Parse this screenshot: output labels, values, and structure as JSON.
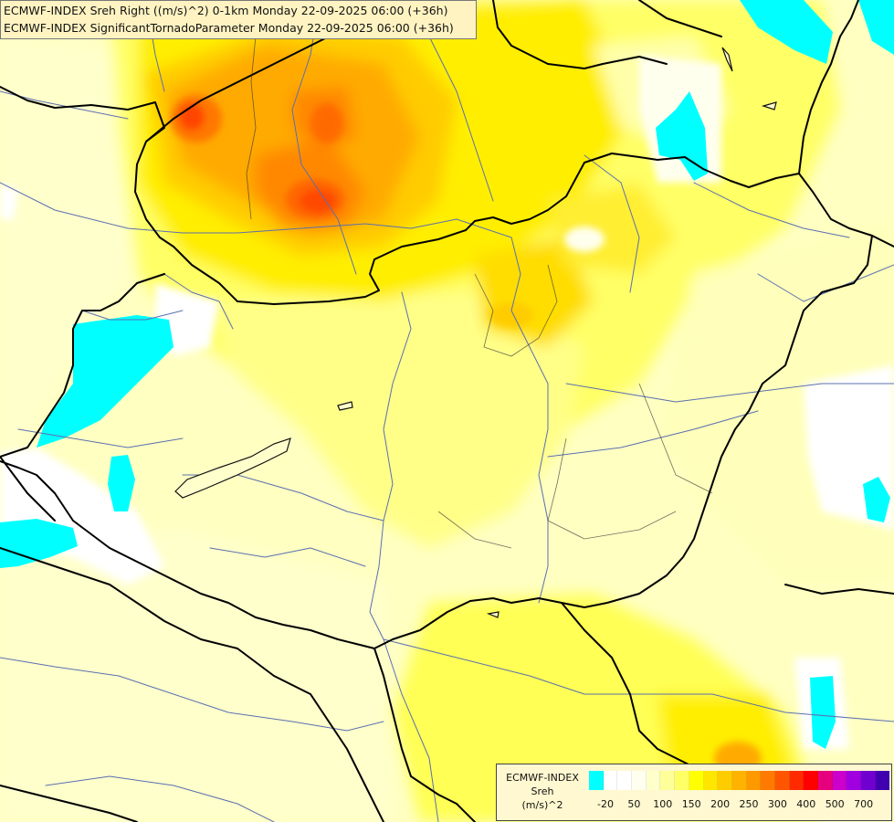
{
  "header": {
    "line1": "ECMWF-INDEX Sreh Right ((m/s)^2) 0-1km Monday 22-09-2025 06:00 (+36h)",
    "line2": "ECMWF-INDEX SignificantTornadoParameter Monday 22-09-2025 06:00 (+36h)"
  },
  "legend": {
    "source": "ECMWF-INDEX",
    "variable": "Sreh",
    "unit": "(m/s)^2",
    "colors": [
      "#00ffff",
      "#ffffff",
      "#ffffff",
      "#fffff0",
      "#ffffcc",
      "#ffff99",
      "#ffff66",
      "#ffff00",
      "#ffe600",
      "#ffcc00",
      "#ffb300",
      "#ff9900",
      "#ff7a00",
      "#ff5500",
      "#ff2a00",
      "#ff0000",
      "#e6007e",
      "#cc00cc",
      "#a000e0",
      "#7000d0",
      "#4000b0",
      "#20008a",
      "#000080"
    ],
    "ticks": [
      {
        "label": "-20",
        "index": 1
      },
      {
        "label": "50",
        "index": 3
      },
      {
        "label": "100",
        "index": 5
      },
      {
        "label": "150",
        "index": 7
      },
      {
        "label": "200",
        "index": 9
      },
      {
        "label": "250",
        "index": 11
      },
      {
        "label": "300",
        "index": 13
      },
      {
        "label": "400",
        "index": 15
      },
      {
        "label": "500",
        "index": 17
      },
      {
        "label": "700",
        "index": 19
      }
    ]
  }
}
